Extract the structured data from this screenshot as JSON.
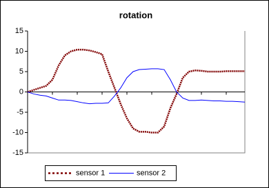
{
  "chart_data": {
    "type": "line",
    "title": "rotation",
    "categories": [
      null,
      null,
      null,
      null,
      null,
      null,
      null,
      null,
      null,
      null,
      null,
      null,
      null,
      null,
      null,
      null,
      null,
      null,
      null,
      null,
      null,
      null,
      null,
      null,
      null,
      null,
      null,
      null,
      null,
      null,
      null,
      null,
      null,
      null,
      null,
      null
    ],
    "series": [
      {
        "name": "sensor 1",
        "color": "#800000",
        "dash": true,
        "values": [
          0,
          0.5,
          1,
          1.5,
          3,
          6.5,
          9,
          10,
          10.4,
          10.4,
          10.2,
          9.8,
          9.3,
          5,
          1,
          -3,
          -6.5,
          -9,
          -9.8,
          -9.8,
          -10,
          -10,
          -8.5,
          -4,
          -0.5,
          3.5,
          5,
          5.3,
          5.2,
          5,
          5,
          5,
          5.1,
          5.1,
          5.1,
          5.1
        ]
      },
      {
        "name": "sensor 2",
        "color": "#0000ff",
        "dash": false,
        "values": [
          0,
          -0.5,
          -0.8,
          -1,
          -1.5,
          -2,
          -2,
          -2.1,
          -2.4,
          -2.7,
          -2.9,
          -2.8,
          -2.8,
          -2.7,
          -1,
          1,
          3.5,
          5,
          5.5,
          5.6,
          5.7,
          5.7,
          5.5,
          3,
          0,
          -1.5,
          -2.1,
          -2.1,
          -2,
          -2.1,
          -2.2,
          -2.2,
          -2.3,
          -2.3,
          -2.4,
          -2.5
        ]
      }
    ],
    "ylim": [
      -15,
      15
    ],
    "yticks": [
      -15,
      -10,
      -5,
      0,
      5,
      10,
      15
    ],
    "grid": false
  }
}
